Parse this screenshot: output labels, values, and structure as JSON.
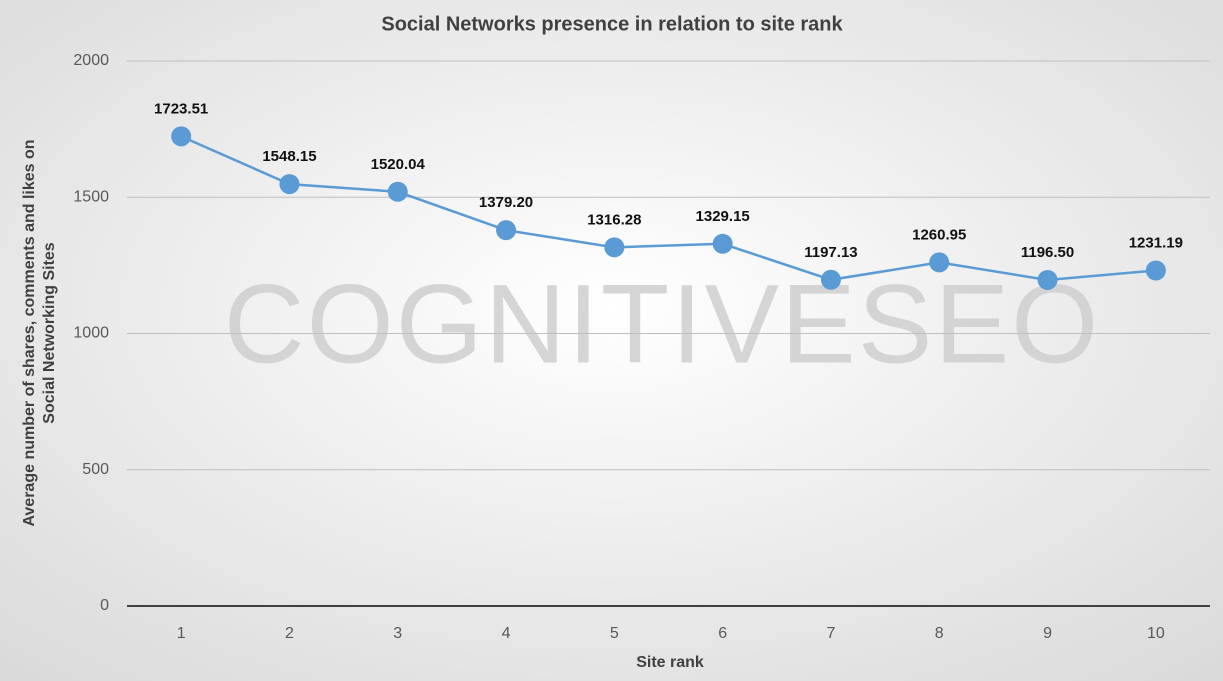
{
  "chart_data": {
    "type": "line",
    "title": "Social Networks presence in relation to site rank",
    "xlabel": "Site rank",
    "ylabel": [
      "Average number of shares, comments and likes on",
      "Social Networking Sites"
    ],
    "watermark": "COGNITIVESEO",
    "categories": [
      "1",
      "2",
      "3",
      "4",
      "5",
      "6",
      "7",
      "8",
      "9",
      "10"
    ],
    "values": [
      1723.51,
      1548.15,
      1520.04,
      1379.2,
      1316.28,
      1329.15,
      1197.13,
      1260.95,
      1196.5,
      1231.19
    ],
    "value_labels": [
      "1723.51",
      "1548.15",
      "1520.04",
      "1379.20",
      "1316.28",
      "1329.15",
      "1197.13",
      "1260.95",
      "1196.50",
      "1231.19"
    ],
    "color": "#5b9bd5",
    "ylim": [
      0,
      2000
    ],
    "yticks": [
      0,
      500,
      1000,
      1500,
      2000
    ],
    "grid": true
  }
}
